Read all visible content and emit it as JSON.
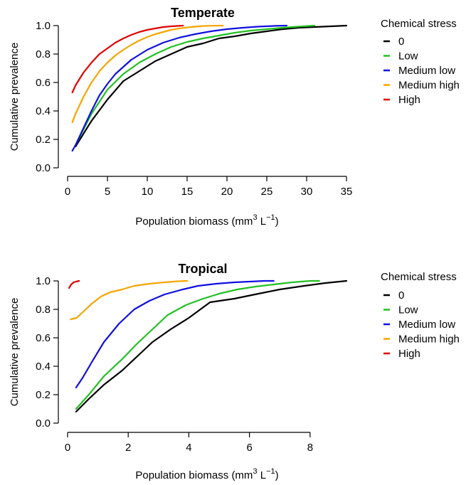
{
  "chart_data": [
    {
      "type": "line",
      "title": "Temperate",
      "xlabel_main": "Population biomass (mm",
      "xlabel_sup1": "3",
      "xlabel_mid": " L",
      "xlabel_sup2": "−1",
      "xlabel_end": ")",
      "ylabel": "Cumulative prevalence",
      "xlim": [
        0,
        35
      ],
      "ylim": [
        0,
        1
      ],
      "xticks": [
        "0",
        "5",
        "10",
        "15",
        "20",
        "25",
        "30",
        "35"
      ],
      "yticks": [
        "0.0",
        "0.2",
        "0.4",
        "0.6",
        "0.8",
        "1.0"
      ],
      "legend_title": "Chemical stress",
      "legend_position": "right",
      "series": [
        {
          "name": "0",
          "color": "#000000",
          "x": [
            1,
            3,
            5,
            7,
            9,
            11,
            13,
            15,
            17,
            19,
            21,
            23,
            25,
            27,
            29,
            31,
            33,
            35
          ],
          "y": [
            0.15,
            0.33,
            0.48,
            0.61,
            0.68,
            0.75,
            0.8,
            0.85,
            0.875,
            0.91,
            0.925,
            0.945,
            0.96,
            0.975,
            0.985,
            0.99,
            0.995,
            1.0
          ]
        },
        {
          "name": "Low",
          "color": "#22c022",
          "x": [
            1,
            3,
            5,
            7,
            9,
            11,
            13,
            15,
            17,
            19,
            21,
            23,
            25,
            27,
            29,
            31
          ],
          "y": [
            0.16,
            0.38,
            0.55,
            0.66,
            0.74,
            0.8,
            0.85,
            0.885,
            0.91,
            0.93,
            0.95,
            0.965,
            0.975,
            0.985,
            0.993,
            1.0
          ]
        },
        {
          "name": "Medium low",
          "color": "#1010e0",
          "x": [
            0.6,
            1,
            2,
            3,
            4,
            5,
            6,
            7,
            8,
            10,
            12,
            14,
            16,
            18,
            20,
            22,
            24,
            26,
            27.5
          ],
          "y": [
            0.12,
            0.16,
            0.28,
            0.4,
            0.51,
            0.59,
            0.66,
            0.71,
            0.76,
            0.83,
            0.88,
            0.915,
            0.94,
            0.96,
            0.975,
            0.985,
            0.993,
            0.998,
            1.0
          ]
        },
        {
          "name": "Medium high",
          "color": "#f5a500",
          "x": [
            0.6,
            1,
            2,
            3,
            4,
            5,
            6,
            7,
            8,
            9,
            10,
            11,
            12,
            13,
            14,
            15,
            16,
            17,
            18,
            19.5
          ],
          "y": [
            0.32,
            0.38,
            0.5,
            0.6,
            0.68,
            0.74,
            0.79,
            0.83,
            0.865,
            0.895,
            0.92,
            0.94,
            0.955,
            0.97,
            0.98,
            0.987,
            0.993,
            0.997,
            0.999,
            1.0
          ]
        },
        {
          "name": "High",
          "color": "#e00000",
          "x": [
            0.6,
            1,
            2,
            3,
            4,
            5,
            6,
            7,
            8,
            9,
            10,
            11,
            12,
            13,
            14.5
          ],
          "y": [
            0.53,
            0.58,
            0.67,
            0.74,
            0.8,
            0.84,
            0.88,
            0.91,
            0.935,
            0.955,
            0.97,
            0.98,
            0.99,
            0.995,
            1.0
          ]
        }
      ]
    },
    {
      "type": "line",
      "title": "Tropical",
      "xlabel_main": "Population biomass (mm",
      "xlabel_sup1": "3",
      "xlabel_mid": " L",
      "xlabel_sup2": "−1",
      "xlabel_end": ")",
      "ylabel": "Cumulative prevalence",
      "xlim": [
        0,
        9.2
      ],
      "ylim": [
        0,
        1
      ],
      "xticks": [
        "0",
        "2",
        "4",
        "6",
        "8"
      ],
      "yticks": [
        "0.0",
        "0.2",
        "0.4",
        "0.6",
        "0.8",
        "1.0"
      ],
      "legend_title": "Chemical stress",
      "legend_position": "right",
      "series": [
        {
          "name": "0",
          "color": "#000000",
          "x": [
            0.28,
            0.7,
            1.2,
            1.8,
            2.3,
            2.8,
            3.4,
            4.0,
            4.7,
            5.5,
            6.3,
            7.0,
            7.8,
            8.5,
            9.2
          ],
          "y": [
            0.08,
            0.17,
            0.27,
            0.37,
            0.47,
            0.57,
            0.66,
            0.74,
            0.85,
            0.875,
            0.91,
            0.94,
            0.965,
            0.985,
            1.0
          ]
        },
        {
          "name": "Low",
          "color": "#22c022",
          "x": [
            0.28,
            0.7,
            1.2,
            1.8,
            2.3,
            2.8,
            3.3,
            3.9,
            4.4,
            5.0,
            5.6,
            6.2,
            6.8,
            7.4,
            8.0,
            8.3
          ],
          "y": [
            0.1,
            0.2,
            0.33,
            0.45,
            0.56,
            0.66,
            0.76,
            0.83,
            0.87,
            0.91,
            0.94,
            0.96,
            0.975,
            0.99,
            1.0,
            1.0
          ]
        },
        {
          "name": "Medium low",
          "color": "#1010e0",
          "x": [
            0.28,
            0.5,
            0.8,
            1.2,
            1.7,
            2.2,
            2.7,
            3.2,
            3.8,
            4.3,
            4.9,
            5.5,
            6.0,
            6.5,
            6.8
          ],
          "y": [
            0.25,
            0.32,
            0.43,
            0.57,
            0.7,
            0.8,
            0.86,
            0.905,
            0.94,
            0.965,
            0.98,
            0.99,
            0.995,
            1.0,
            1.0
          ]
        },
        {
          "name": "Medium high",
          "color": "#f5a500",
          "x": [
            0.1,
            0.3,
            0.5,
            0.8,
            1.1,
            1.4,
            1.8,
            2.2,
            2.7,
            3.2,
            3.6,
            3.95
          ],
          "y": [
            0.73,
            0.74,
            0.78,
            0.84,
            0.89,
            0.92,
            0.94,
            0.965,
            0.98,
            0.99,
            0.997,
            1.0
          ]
        },
        {
          "name": "High",
          "color": "#e00000",
          "x": [
            0.05,
            0.12,
            0.2,
            0.28,
            0.38
          ],
          "y": [
            0.95,
            0.975,
            0.99,
            0.995,
            1.0
          ]
        }
      ]
    }
  ]
}
